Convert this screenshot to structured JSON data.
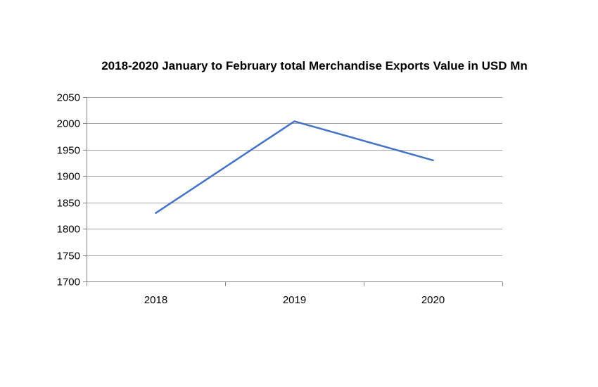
{
  "chart_data": {
    "type": "line",
    "title": "2018-2020 January to February total Merchandise Exports Value in USD Mn",
    "xlabel": "",
    "ylabel": "",
    "categories": [
      "2018",
      "2019",
      "2020"
    ],
    "series": [
      {
        "name": "Merchandise Exports Value",
        "values": [
          1830,
          2004,
          1930
        ],
        "color": "#4472c4"
      }
    ],
    "ylim": [
      1700,
      2050
    ],
    "yticks": [
      1700,
      1750,
      1800,
      1850,
      1900,
      1950,
      2000,
      2050
    ],
    "grid": true,
    "legend": "none"
  }
}
